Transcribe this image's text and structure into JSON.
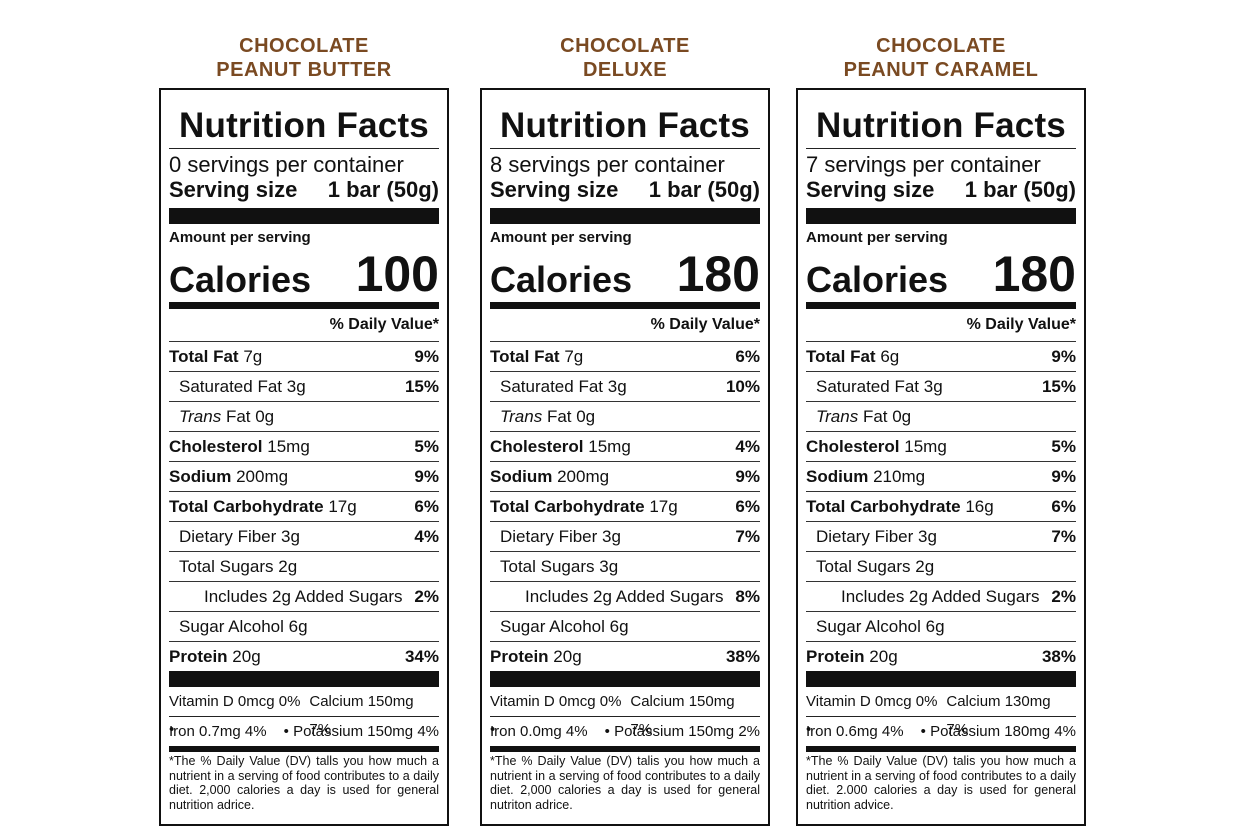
{
  "labels": [
    {
      "flavor": [
        "CHOCOLATE",
        "PEANUT BUTTER"
      ],
      "title": "Nutrition Facts",
      "servings": "0 servings per container",
      "serving_size_label": "Serving size",
      "serving_size": "1 bar (50g)",
      "amount_per_serving": "Amount per serving",
      "calories_label": "Calories",
      "calories": "100",
      "dv_header": "% Daily Value*",
      "rows": [
        {
          "name": "Total Fat",
          "amount": "7g",
          "pct": "9%",
          "bold": true,
          "indent": 0
        },
        {
          "name": "Saturated Fat",
          "amount": "3g",
          "pct": "15%",
          "bold": false,
          "indent": 1
        },
        {
          "name": "Trans",
          "amount": "Fat 0g",
          "pct": "",
          "bold": false,
          "indent": 1,
          "italic": true
        },
        {
          "name": "Cholesterol",
          "amount": "15mg",
          "pct": "5%",
          "bold": true,
          "indent": 0
        },
        {
          "name": "Sodium",
          "amount": "200mg",
          "pct": "9%",
          "bold": true,
          "indent": 0
        },
        {
          "name": "Total Carbohydrate",
          "amount": "17g",
          "pct": "6%",
          "bold": true,
          "indent": 0
        },
        {
          "name": "Dietary Fiber",
          "amount": "3g",
          "pct": "4%",
          "bold": false,
          "indent": 1
        },
        {
          "name": "Total Sugars",
          "amount": "2g",
          "pct": "",
          "bold": false,
          "indent": 1
        },
        {
          "name": "Includes 2g Added Sugars",
          "amount": "",
          "pct": "2%",
          "bold": false,
          "indent": 2
        },
        {
          "name": "Sugar Alcohol",
          "amount": "6g",
          "pct": "",
          "bold": false,
          "indent": 1
        },
        {
          "name": "Protein",
          "amount": "20g",
          "pct": "34%",
          "bold": true,
          "indent": 0
        }
      ],
      "vitamins": [
        {
          "left": "Vitamin D 0mcg 0% •",
          "right": "Calcium 150mg 7%"
        },
        {
          "left": "Iron 0.7mg 4%",
          "right": "• Potassium 150mg 4%"
        }
      ],
      "footnote": "*The % Daily Value (DV) talls you how much a nutrient in a serving of food contributes to a daily diet. 2,000 calories a day is used for general nutrition adrice."
    },
    {
      "flavor": [
        "CHOCOLATE",
        "DELUXE"
      ],
      "title": "Nutrition Facts",
      "servings": "8 servings per container",
      "serving_size_label": "Serving size",
      "serving_size": "1 bar (50g)",
      "amount_per_serving": "Amount per serving",
      "calories_label": "Calories",
      "calories": "180",
      "dv_header": "% Daily Value*",
      "rows": [
        {
          "name": "Total Fat",
          "amount": "7g",
          "pct": "6%",
          "bold": true,
          "indent": 0
        },
        {
          "name": "Saturated Fat",
          "amount": "3g",
          "pct": "10%",
          "bold": false,
          "indent": 1
        },
        {
          "name": "Trans",
          "amount": "Fat 0g",
          "pct": "",
          "bold": false,
          "indent": 1,
          "italic": true
        },
        {
          "name": "Cholesterol",
          "amount": "15mg",
          "pct": "4%",
          "bold": true,
          "indent": 0
        },
        {
          "name": "Sodium",
          "amount": "200mg",
          "pct": "9%",
          "bold": true,
          "indent": 0
        },
        {
          "name": "Total Carbohydrate",
          "amount": "17g",
          "pct": "6%",
          "bold": true,
          "indent": 0
        },
        {
          "name": "Dietary Fiber",
          "amount": "3g",
          "pct": "7%",
          "bold": false,
          "indent": 1
        },
        {
          "name": "Total Sugars",
          "amount": "3g",
          "pct": "",
          "bold": false,
          "indent": 1
        },
        {
          "name": "Includes 2g Added Sugars",
          "amount": "",
          "pct": "8%",
          "bold": false,
          "indent": 2
        },
        {
          "name": "Sugar Alcohol",
          "amount": "6g",
          "pct": "",
          "bold": false,
          "indent": 1
        },
        {
          "name": "Protein",
          "amount": "20g",
          "pct": "38%",
          "bold": true,
          "indent": 0
        }
      ],
      "vitamins": [
        {
          "left": "Vitamin D 0mcg 0% •",
          "right": "Calcium 150mg 7%"
        },
        {
          "left": "Iron 0.0mg 4%",
          "right": "• Potassium 150mg 2%"
        }
      ],
      "footnote": "*The % Daily Value (DV) talis you how much a nutrient in a serving of food contributes to a daily diet. 2,000 calories a day is used for general nutriton adrice."
    },
    {
      "flavor": [
        "CHOCOLATE",
        "PEANUT CARAMEL"
      ],
      "title": "Nutrition Facts",
      "servings": "7 servings per container",
      "serving_size_label": "Serving size",
      "serving_size": "1 bar (50g)",
      "amount_per_serving": "Amount per serving",
      "calories_label": "Calories",
      "calories": "180",
      "dv_header": "% Daily Value*",
      "rows": [
        {
          "name": "Total Fat",
          "amount": "6g",
          "pct": "9%",
          "bold": true,
          "indent": 0
        },
        {
          "name": "Saturated Fat",
          "amount": "3g",
          "pct": "15%",
          "bold": false,
          "indent": 1
        },
        {
          "name": "Trans",
          "amount": "Fat 0g",
          "pct": "",
          "bold": false,
          "indent": 1,
          "italic": true
        },
        {
          "name": "Cholesterol",
          "amount": "15mg",
          "pct": "5%",
          "bold": true,
          "indent": 0
        },
        {
          "name": "Sodium",
          "amount": "210mg",
          "pct": "9%",
          "bold": true,
          "indent": 0
        },
        {
          "name": "Total Carbohydrate",
          "amount": "16g",
          "pct": "6%",
          "bold": true,
          "indent": 0
        },
        {
          "name": "Dietary Fiber",
          "amount": "3g",
          "pct": "7%",
          "bold": false,
          "indent": 1
        },
        {
          "name": "Total Sugars",
          "amount": "2g",
          "pct": "",
          "bold": false,
          "indent": 1
        },
        {
          "name": "Includes 2g Added Sugars",
          "amount": "",
          "pct": "2%",
          "bold": false,
          "indent": 2
        },
        {
          "name": "Sugar Alcohol",
          "amount": "6g",
          "pct": "",
          "bold": false,
          "indent": 1
        },
        {
          "name": "Protein",
          "amount": "20g",
          "pct": "38%",
          "bold": true,
          "indent": 0
        }
      ],
      "vitamins": [
        {
          "left": "Vitamin D 0mcg 0% •",
          "right": "Calcium 130mg 7%"
        },
        {
          "left": "Iron 0.6mg 4%",
          "right": "• Potassium 180mg 4%"
        }
      ],
      "footnote": "*The % Daily Value (DV) talis you how much a nutrient in a serving of food contributes to a daily diet. 2.000 calories a day is used for general nutrition advice."
    }
  ]
}
